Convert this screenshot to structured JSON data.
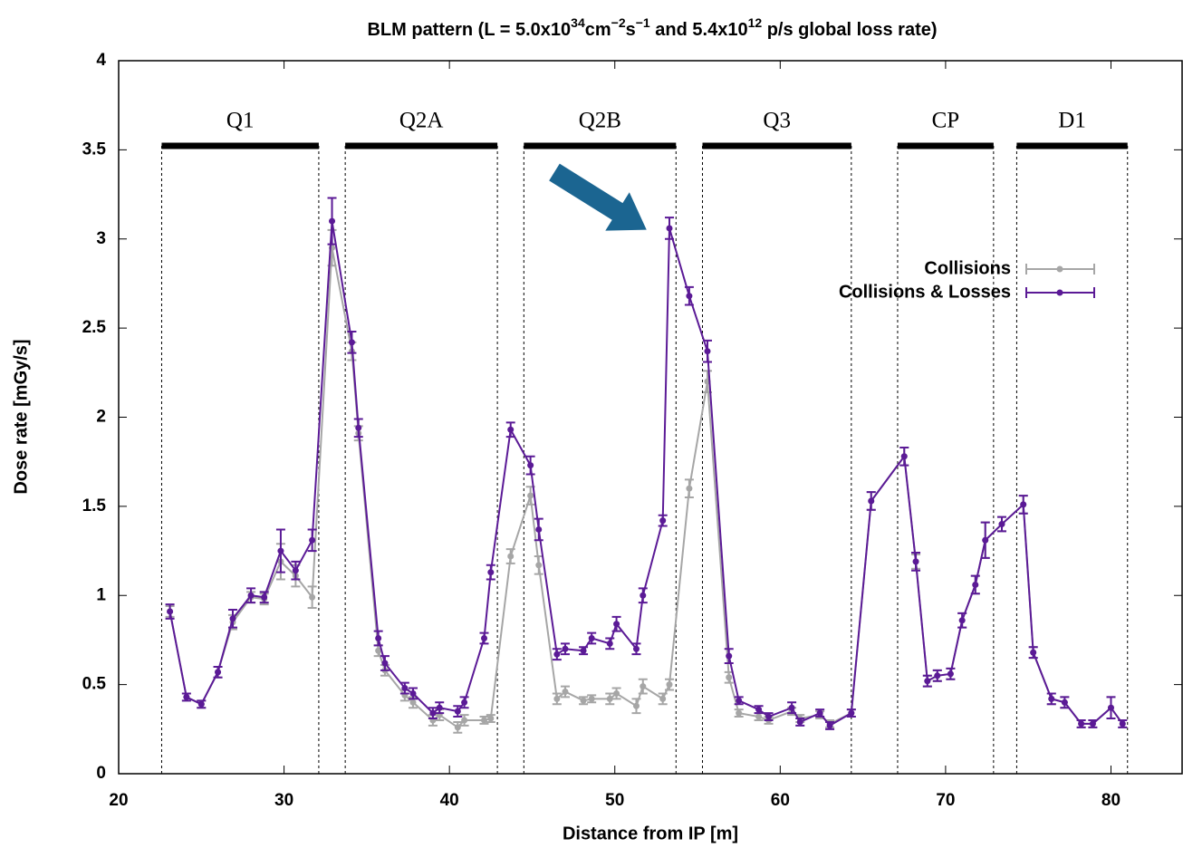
{
  "chart_data": {
    "type": "line",
    "title_parts": [
      {
        "text": "BLM pattern (L = 5.0x10"
      },
      {
        "text": "34",
        "sup": true
      },
      {
        "text": "cm"
      },
      {
        "text": "−2",
        "sup": true
      },
      {
        "text": "s"
      },
      {
        "text": "−1",
        "sup": true
      },
      {
        "text": " and 5.4x10"
      },
      {
        "text": "12",
        "sup": true
      },
      {
        "text": " p/s global loss rate)"
      }
    ],
    "x_label": "Distance from IP [m]",
    "y_label": "Dose rate [mGy/s]",
    "xlim": [
      20,
      84.3
    ],
    "ylim": [
      0,
      4
    ],
    "xticks": [
      20,
      30,
      40,
      50,
      60,
      70,
      80
    ],
    "yticks": [
      0,
      0.5,
      1,
      1.5,
      2,
      2.5,
      3,
      3.5,
      4
    ],
    "legend": "upper-right",
    "regions": [
      {
        "label": "Q1",
        "start": 22.6,
        "end": 32.1
      },
      {
        "label": "Q2A",
        "start": 33.7,
        "end": 42.9
      },
      {
        "label": "Q2B",
        "start": 44.5,
        "end": 53.7
      },
      {
        "label": "Q3",
        "start": 55.3,
        "end": 64.3
      },
      {
        "label": "CP",
        "start": 67.1,
        "end": 72.9
      },
      {
        "label": "D1",
        "start": 74.3,
        "end": 81.0
      }
    ],
    "x": [
      23.1,
      24.1,
      25.0,
      26.0,
      26.9,
      28.0,
      28.8,
      29.8,
      30.7,
      31.7,
      32.9,
      34.1,
      34.5,
      35.7,
      36.1,
      37.3,
      37.8,
      39.0,
      39.4,
      40.5,
      40.9,
      42.1,
      42.5,
      43.7,
      44.9,
      45.4,
      46.5,
      47.0,
      48.1,
      48.6,
      49.7,
      50.1,
      51.3,
      51.7,
      52.9,
      53.3,
      54.5,
      55.6,
      56.9,
      57.5,
      58.7,
      59.3,
      60.7,
      61.2,
      62.4,
      63.0,
      64.3,
      65.5,
      67.5,
      68.2,
      68.9,
      69.5,
      70.3,
      71.0,
      71.8,
      72.4,
      73.4,
      74.7,
      75.3,
      76.4,
      77.2,
      78.2,
      78.9,
      80.0,
      80.7
    ],
    "series": [
      {
        "name": "Collisions",
        "color": "#a6a6a6",
        "values": [
          0.91,
          0.43,
          0.39,
          0.57,
          0.85,
          0.99,
          0.98,
          1.19,
          1.11,
          0.99,
          2.95,
          2.37,
          1.91,
          0.69,
          0.58,
          0.44,
          0.4,
          0.3,
          0.33,
          0.26,
          0.3,
          0.3,
          0.31,
          1.22,
          1.56,
          1.17,
          0.42,
          0.46,
          0.41,
          0.42,
          0.42,
          0.45,
          0.38,
          0.49,
          0.42,
          0.5,
          1.6,
          2.2,
          0.54,
          0.34,
          0.32,
          0.3,
          0.35,
          0.31,
          0.33,
          0.28,
          0.34,
          1.53,
          1.78,
          1.19,
          0.52,
          0.55,
          0.56,
          0.86,
          1.06,
          1.31,
          1.4,
          1.51,
          0.68,
          0.42,
          0.4,
          0.28,
          0.28,
          0.37,
          0.28
        ],
        "errors": [
          0.03,
          0.02,
          0.02,
          0.03,
          0.04,
          0.03,
          0.03,
          0.1,
          0.06,
          0.06,
          0.1,
          0.05,
          0.04,
          0.03,
          0.03,
          0.03,
          0.03,
          0.03,
          0.03,
          0.03,
          0.03,
          0.02,
          0.02,
          0.04,
          0.05,
          0.05,
          0.03,
          0.03,
          0.02,
          0.02,
          0.03,
          0.03,
          0.04,
          0.04,
          0.03,
          0.03,
          0.05,
          0.06,
          0.03,
          0.02,
          0.02,
          0.02,
          0.02,
          0.02,
          0.02,
          0.02,
          0.02,
          0.05,
          0.05,
          0.04,
          0.03,
          0.03,
          0.03,
          0.04,
          0.05,
          0.1,
          0.04,
          0.05,
          0.03,
          0.03,
          0.03,
          0.02,
          0.02,
          0.06,
          0.02
        ]
      },
      {
        "name": "Collisions & Losses",
        "color": "#5b1a96",
        "values": [
          0.91,
          0.43,
          0.39,
          0.57,
          0.87,
          1.0,
          0.99,
          1.25,
          1.14,
          1.31,
          3.1,
          2.42,
          1.94,
          0.76,
          0.62,
          0.48,
          0.45,
          0.34,
          0.37,
          0.35,
          0.4,
          0.76,
          1.13,
          1.93,
          1.73,
          1.37,
          0.67,
          0.7,
          0.69,
          0.76,
          0.73,
          0.84,
          0.7,
          1.0,
          1.42,
          3.06,
          2.68,
          2.37,
          0.66,
          0.41,
          0.36,
          0.32,
          0.37,
          0.29,
          0.34,
          0.27,
          0.34,
          1.53,
          1.78,
          1.19,
          0.52,
          0.55,
          0.56,
          0.86,
          1.06,
          1.31,
          1.4,
          1.51,
          0.68,
          0.42,
          0.4,
          0.28,
          0.28,
          0.37,
          0.28
        ],
        "errors": [
          0.04,
          0.02,
          0.02,
          0.03,
          0.05,
          0.04,
          0.03,
          0.12,
          0.05,
          0.06,
          0.13,
          0.06,
          0.05,
          0.04,
          0.04,
          0.03,
          0.03,
          0.03,
          0.03,
          0.03,
          0.03,
          0.03,
          0.04,
          0.04,
          0.05,
          0.06,
          0.03,
          0.03,
          0.02,
          0.03,
          0.03,
          0.04,
          0.03,
          0.04,
          0.03,
          0.06,
          0.05,
          0.06,
          0.04,
          0.02,
          0.02,
          0.02,
          0.03,
          0.02,
          0.02,
          0.02,
          0.02,
          0.05,
          0.05,
          0.05,
          0.03,
          0.03,
          0.03,
          0.04,
          0.05,
          0.1,
          0.04,
          0.05,
          0.03,
          0.03,
          0.03,
          0.02,
          0.02,
          0.06,
          0.02
        ]
      }
    ]
  }
}
